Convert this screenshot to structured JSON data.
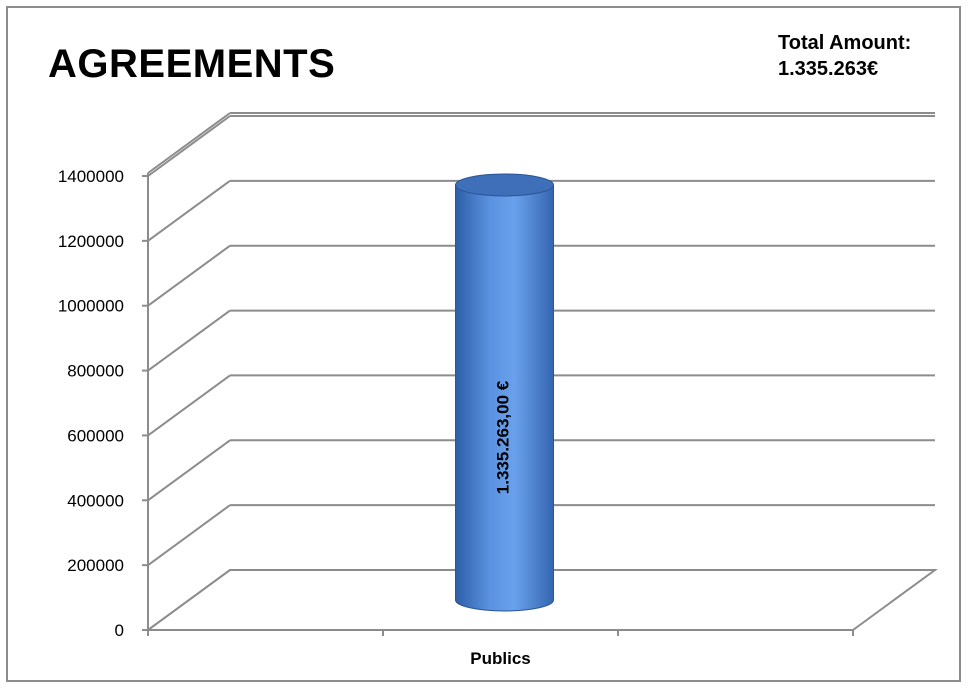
{
  "total": {
    "label": "Total Amount:",
    "value": "1.335.263€"
  },
  "chart_data": {
    "type": "bar",
    "title": "AGREEMENTS",
    "categories": [
      "Publics"
    ],
    "values": [
      1335263
    ],
    "data_labels": [
      "1.335.263,00 €"
    ],
    "ylim": [
      0,
      1400000
    ],
    "yticks": [
      "0",
      "200000",
      "400000",
      "600000",
      "800000",
      "1000000",
      "1200000",
      "1400000"
    ],
    "grid": true,
    "legend": "none",
    "style": "3d-cylinder",
    "bar_color": "#4a80cf"
  }
}
